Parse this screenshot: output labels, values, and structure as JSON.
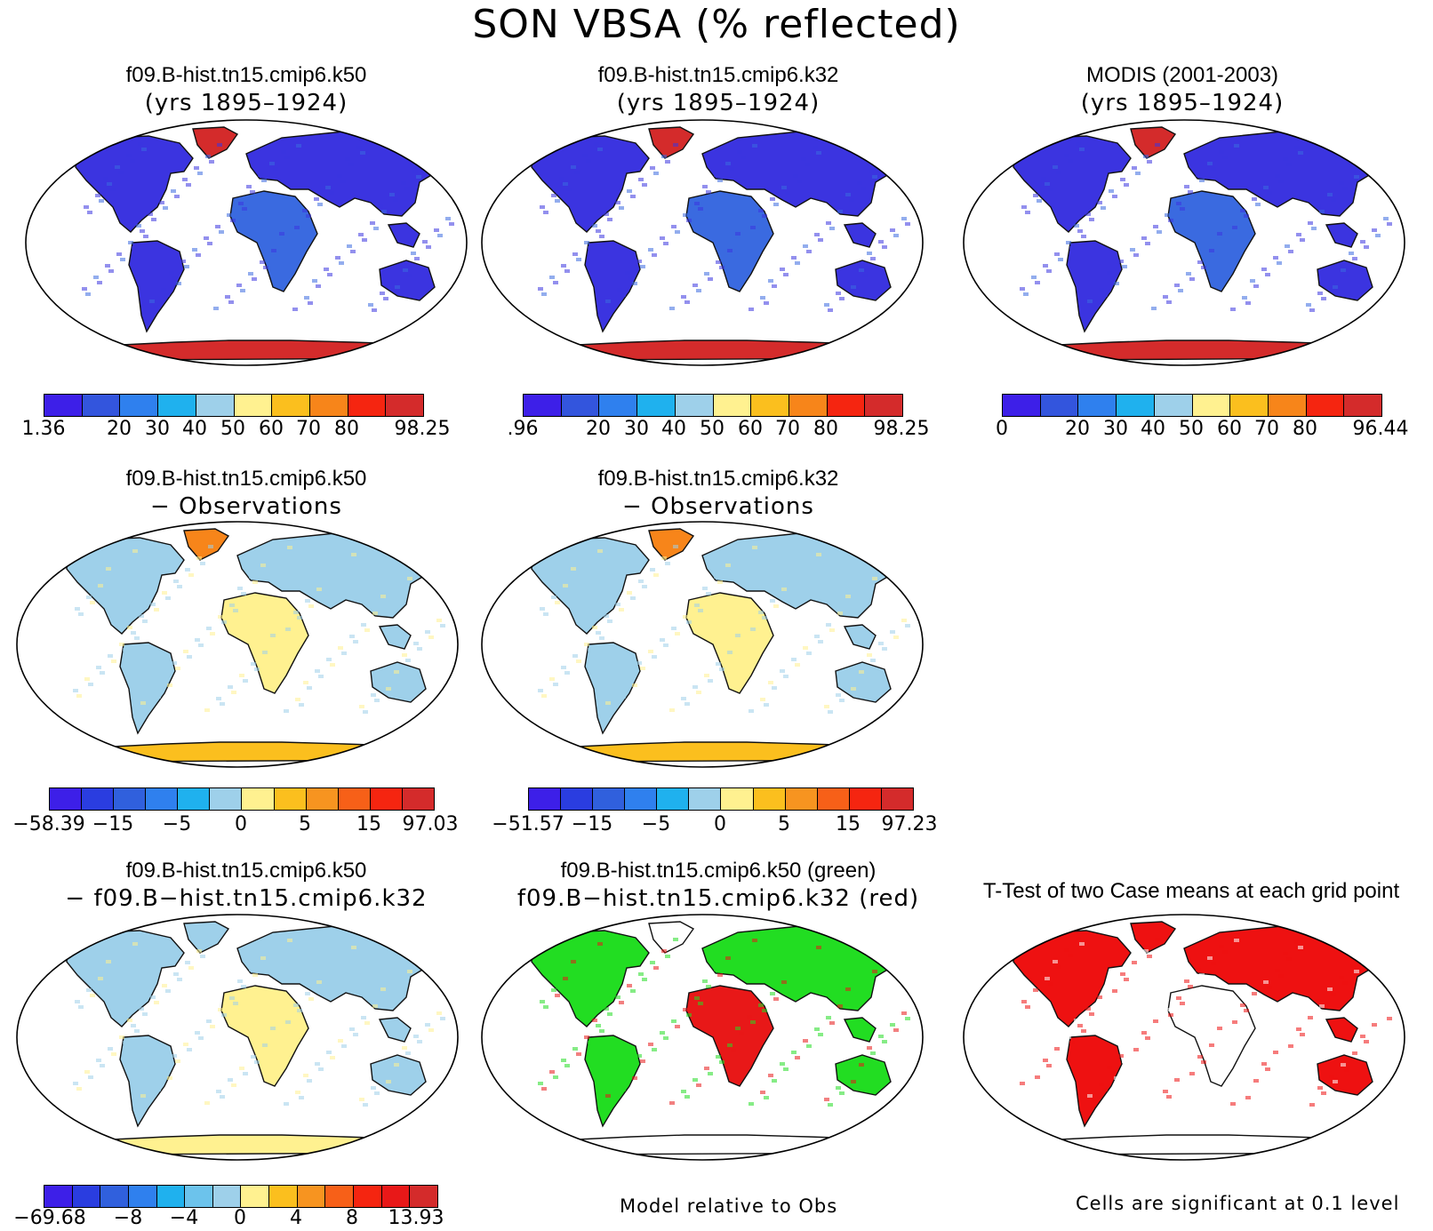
{
  "title": "SON VBSA (% reflected)",
  "palettes": {
    "abs": [
      "#3d1fe8",
      "#3355dd",
      "#2f80ee",
      "#1fb1ee",
      "#9ed0ea",
      "#fff190",
      "#fbbf1e",
      "#f7851a",
      "#f52510",
      "#d42b2b"
    ],
    "diff": [
      "#3d1fe8",
      "#2a3de0",
      "#3060dd",
      "#2f80ee",
      "#1fb1ee",
      "#9ed0ea",
      "#fff190",
      "#fbbf1e",
      "#f79420",
      "#f76018",
      "#f52510",
      "#d42b2b"
    ],
    "diff13": [
      "#3d1fe8",
      "#2a3de0",
      "#3060dd",
      "#2f80ee",
      "#1fb1ee",
      "#6cc3ec",
      "#9ed0ea",
      "#fff190",
      "#fbbf1e",
      "#f79420",
      "#f76018",
      "#f52510",
      "#e81818",
      "#d42b2b"
    ]
  },
  "panels": [
    {
      "id": "p1",
      "title1": "f09.B-hist.tn15.cmip6.k50",
      "title2": "(yrs 1895–1924)",
      "land": "#3b34e0",
      "land2": "#3a6ae0",
      "polar": "#d42b2b",
      "antarc": "#d42b2b"
    },
    {
      "id": "p2",
      "title1": "f09.B-hist.tn15.cmip6.k32",
      "title2": "(yrs 1895–1924)",
      "land": "#3b34e0",
      "land2": "#3a6ae0",
      "polar": "#d42b2b",
      "antarc": "#d42b2b"
    },
    {
      "id": "p3",
      "title1": "MODIS (2001-2003)",
      "title2": "(yrs 1895–1924)",
      "land": "#3b34e0",
      "land2": "#3a6ae0",
      "polar": "#d42b2b",
      "antarc": "#d42b2b"
    },
    {
      "id": "p4",
      "title1": "f09.B-hist.tn15.cmip6.k50",
      "title2": "− Observations",
      "land": "#9ed0ea",
      "land2": "#fff190",
      "polar": "#f7851a",
      "antarc": "#fbbf1e"
    },
    {
      "id": "p5",
      "title1": "f09.B-hist.tn15.cmip6.k32",
      "title2": "− Observations",
      "land": "#9ed0ea",
      "land2": "#fff190",
      "polar": "#f7851a",
      "antarc": "#fbbf1e"
    },
    {
      "id": "p6",
      "title1": "f09.B-hist.tn15.cmip6.k50",
      "title2": "− f09.B−hist.tn15.cmip6.k32",
      "land": "#9ed0ea",
      "land2": "#fff190",
      "polar": "#9ed0ea",
      "antarc": "#fff190"
    },
    {
      "id": "p7",
      "title1": "f09.B-hist.tn15.cmip6.k50 (green)",
      "title2": "f09.B−hist.tn15.cmip6.k32 (red)",
      "land": "#22dd22",
      "land2": "#e81818",
      "polar": "#ffffff",
      "antarc": "#ffffff"
    },
    {
      "id": "p8",
      "title1": "T-Test of two Case means at each grid point",
      "title2": "",
      "land": "#ee1111",
      "land2": "#ffffff",
      "polar": "#ee1111",
      "antarc": "#ffffff"
    }
  ],
  "colorbars": [
    {
      "ticks": [
        "1.36",
        "20",
        "30",
        "40",
        "50",
        "60",
        "70",
        "80",
        "98.25"
      ]
    },
    {
      "ticks": [
        ".96",
        "20",
        "30",
        "40",
        "50",
        "60",
        "70",
        "80",
        "98.25"
      ]
    },
    {
      "ticks": [
        "0",
        "20",
        "30",
        "40",
        "50",
        "60",
        "70",
        "80",
        "96.44"
      ]
    },
    {
      "ticks": [
        "−58.39",
        "−15",
        "−5",
        "0",
        "5",
        "15",
        "97.03"
      ]
    },
    {
      "ticks": [
        "−51.57",
        "−15",
        "−5",
        "0",
        "5",
        "15",
        "97.23"
      ]
    },
    {
      "ticks": [
        "−69.68",
        "−8",
        "−4",
        "0",
        "4",
        "8",
        "13.93"
      ]
    }
  ],
  "notes": {
    "model_rel": "Model relative to Obs",
    "significant": "Cells are significant at 0.1 level"
  }
}
